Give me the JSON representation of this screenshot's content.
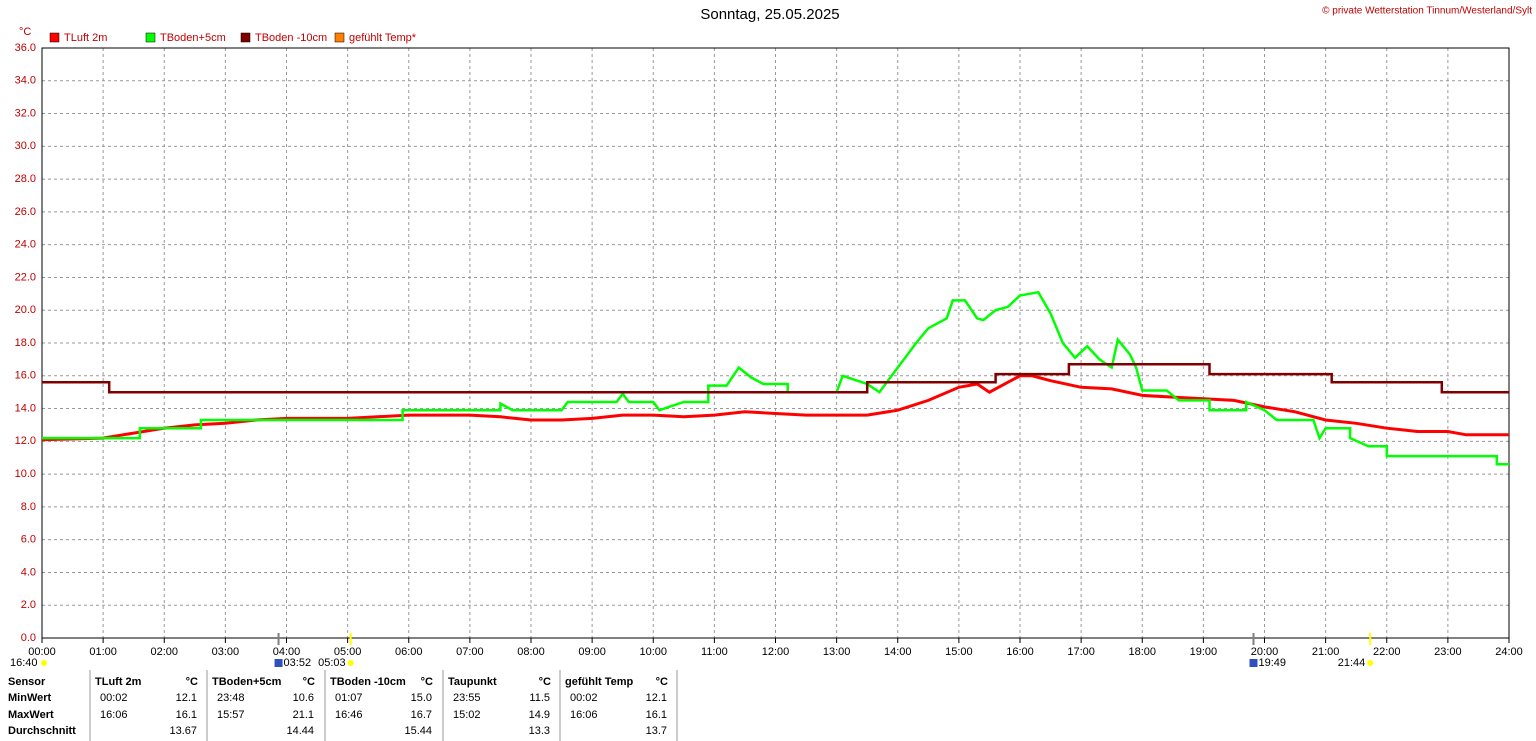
{
  "header": {
    "title": "Sonntag, 25.05.2025",
    "copyright": "© private Wetterstation Tinnum/Westerland/Sylt"
  },
  "chart_data": {
    "type": "line",
    "y_label": "°C",
    "xlim": [
      0,
      24
    ],
    "ylim": [
      0,
      36
    ],
    "grid": true,
    "xticks": [
      {
        "value": 0,
        "label": "00:00"
      },
      {
        "value": 1,
        "label": "01:00"
      },
      {
        "value": 2,
        "label": "02:00"
      },
      {
        "value": 3,
        "label": "03:00"
      },
      {
        "value": 4,
        "label": "04:00"
      },
      {
        "value": 5,
        "label": "05:00"
      },
      {
        "value": 6,
        "label": "06:00"
      },
      {
        "value": 7,
        "label": "07:00"
      },
      {
        "value": 8,
        "label": "08:00"
      },
      {
        "value": 9,
        "label": "09:00"
      },
      {
        "value": 10,
        "label": "10:00"
      },
      {
        "value": 11,
        "label": "11:00"
      },
      {
        "value": 12,
        "label": "12:00"
      },
      {
        "value": 13,
        "label": "13:00"
      },
      {
        "value": 14,
        "label": "14:00"
      },
      {
        "value": 15,
        "label": "15:00"
      },
      {
        "value": 16,
        "label": "16:00"
      },
      {
        "value": 17,
        "label": "17:00"
      },
      {
        "value": 18,
        "label": "18:00"
      },
      {
        "value": 19,
        "label": "19:00"
      },
      {
        "value": 20,
        "label": "20:00"
      },
      {
        "value": 21,
        "label": "21:00"
      },
      {
        "value": 22,
        "label": "22:00"
      },
      {
        "value": 23,
        "label": "23:00"
      },
      {
        "value": 24,
        "label": "24:00"
      }
    ],
    "yticks": [
      {
        "value": 0,
        "label": "0.0"
      },
      {
        "value": 2,
        "label": "2.0"
      },
      {
        "value": 4,
        "label": "4.0"
      },
      {
        "value": 6,
        "label": "6.0"
      },
      {
        "value": 8,
        "label": "8.0"
      },
      {
        "value": 10,
        "label": "10.0"
      },
      {
        "value": 12,
        "label": "12.0"
      },
      {
        "value": 14,
        "label": "14.0"
      },
      {
        "value": 16,
        "label": "16.0"
      },
      {
        "value": 18,
        "label": "18.0"
      },
      {
        "value": 20,
        "label": "20.0"
      },
      {
        "value": 22,
        "label": "22.0"
      },
      {
        "value": 24,
        "label": "24.0"
      },
      {
        "value": 26,
        "label": "26.0"
      },
      {
        "value": 28,
        "label": "28.0"
      },
      {
        "value": 30,
        "label": "30.0"
      },
      {
        "value": 32,
        "label": "32.0"
      },
      {
        "value": 34,
        "label": "34.0"
      },
      {
        "value": 36,
        "label": "36.0"
      }
    ],
    "series": [
      {
        "name": "TLuft 2m",
        "color": "#ff0000",
        "x": [
          0,
          1,
          1.5,
          2,
          2.5,
          3,
          3.5,
          4,
          5,
          6,
          7,
          7.5,
          8,
          8.5,
          9,
          9.5,
          10,
          10.5,
          11,
          11.5,
          12,
          12.5,
          13,
          13.5,
          14,
          14.5,
          15,
          15.3,
          15.5,
          15.8,
          16,
          16.2,
          16.5,
          17,
          17.5,
          18,
          18.5,
          19,
          19.5,
          20,
          20.5,
          21,
          21.5,
          22,
          22.5,
          23,
          23.3,
          24
        ],
        "values": [
          12.1,
          12.2,
          12.5,
          12.8,
          13.0,
          13.1,
          13.3,
          13.4,
          13.4,
          13.6,
          13.6,
          13.5,
          13.3,
          13.3,
          13.4,
          13.6,
          13.6,
          13.5,
          13.6,
          13.8,
          13.7,
          13.6,
          13.6,
          13.6,
          13.9,
          14.5,
          15.3,
          15.5,
          15.0,
          15.6,
          16.0,
          16.0,
          15.7,
          15.3,
          15.2,
          14.8,
          14.7,
          14.6,
          14.5,
          14.1,
          13.8,
          13.3,
          13.1,
          12.8,
          12.6,
          12.6,
          12.4,
          12.4
        ]
      },
      {
        "name": "TBoden+5cm",
        "color": "#00ff00",
        "x": [
          0,
          1.6,
          1.6,
          2.6,
          2.6,
          5.9,
          5.9,
          7.5,
          7.5,
          7.7,
          8.5,
          8.6,
          9.4,
          9.5,
          9.6,
          10.0,
          10.1,
          10.5,
          10.9,
          10.9,
          11.2,
          11.4,
          11.6,
          11.8,
          12.2,
          12.2,
          13.0,
          13.1,
          13.5,
          13.7,
          13.9,
          14.1,
          14.3,
          14.5,
          14.8,
          14.9,
          15.1,
          15.3,
          15.4,
          15.6,
          15.8,
          16.0,
          16.3,
          16.5,
          16.7,
          16.9,
          17.1,
          17.3,
          17.5,
          17.6,
          17.8,
          17.9,
          18.0,
          18.4,
          18.6,
          19.1,
          19.1,
          19.7,
          19.7,
          20.0,
          20.2,
          20.8,
          20.9,
          21.0,
          21.4,
          21.4,
          21.7,
          22.0,
          22.0,
          23.8,
          23.8,
          24
        ],
        "values": [
          12.2,
          12.2,
          12.8,
          12.8,
          13.3,
          13.3,
          13.9,
          13.9,
          14.3,
          13.9,
          13.9,
          14.4,
          14.4,
          14.9,
          14.4,
          14.4,
          13.9,
          14.4,
          14.4,
          15.4,
          15.4,
          16.5,
          15.9,
          15.5,
          15.5,
          15.0,
          15.0,
          16.0,
          15.5,
          15.0,
          16.0,
          17.0,
          18.0,
          18.9,
          19.5,
          20.6,
          20.6,
          19.5,
          19.4,
          20.0,
          20.2,
          20.9,
          21.1,
          19.8,
          18.0,
          17.1,
          17.8,
          17.0,
          16.5,
          18.2,
          17.3,
          16.5,
          15.1,
          15.1,
          14.5,
          14.5,
          13.9,
          13.9,
          14.4,
          13.9,
          13.3,
          13.3,
          12.2,
          12.8,
          12.8,
          12.2,
          11.7,
          11.7,
          11.1,
          11.1,
          10.6,
          10.6
        ]
      },
      {
        "name": "TBoden -10cm",
        "color": "#800000",
        "x": [
          0,
          1.1,
          1.1,
          13.5,
          13.5,
          15.6,
          15.6,
          16.8,
          16.8,
          19.1,
          19.1,
          21.1,
          21.1,
          22.9,
          22.9,
          24
        ],
        "values": [
          15.6,
          15.6,
          15.0,
          15.0,
          15.6,
          15.6,
          16.1,
          16.1,
          16.7,
          16.7,
          16.1,
          16.1,
          15.6,
          15.6,
          15.0,
          15.0
        ]
      },
      {
        "name": "gefühlt Temp*",
        "color": "#ff8000",
        "x": [],
        "values": []
      }
    ],
    "annotations": [
      {
        "label": "16:40",
        "color": "#ffff00"
      },
      {
        "label": "03:52",
        "x": 3.87,
        "color": "#3050c0"
      },
      {
        "label": "05:03",
        "x": 5.05,
        "color": "#ffff00"
      },
      {
        "label": "19:49",
        "x": 19.82,
        "color": "#3050c0"
      },
      {
        "label": "21:44",
        "x": 21.73,
        "color": "#ffff00"
      }
    ]
  },
  "table": {
    "sensor_label": "Sensor",
    "columns": [
      {
        "name": "TLuft 2m",
        "unit": "°C"
      },
      {
        "name": "TBoden+5cm",
        "unit": "°C"
      },
      {
        "name": "TBoden -10cm",
        "unit": "°C"
      },
      {
        "name": "Taupunkt",
        "unit": "°C"
      },
      {
        "name": "gefühlt Temp",
        "unit": "°C"
      }
    ],
    "rows": [
      {
        "label": "MinWert",
        "cells": [
          {
            "time": "00:02",
            "value": "12.1"
          },
          {
            "time": "23:48",
            "value": "10.6"
          },
          {
            "time": "01:07",
            "value": "15.0"
          },
          {
            "time": "23:55",
            "value": "11.5"
          },
          {
            "time": "00:02",
            "value": "12.1"
          }
        ]
      },
      {
        "label": "MaxWert",
        "cells": [
          {
            "time": "16:06",
            "value": "16.1"
          },
          {
            "time": "15:57",
            "value": "21.1"
          },
          {
            "time": "16:46",
            "value": "16.7"
          },
          {
            "time": "15:02",
            "value": "14.9"
          },
          {
            "time": "16:06",
            "value": "16.1"
          }
        ]
      },
      {
        "label": "Durchschnitt",
        "cells": [
          {
            "value": "13.67"
          },
          {
            "value": "14.44"
          },
          {
            "value": "15.44"
          },
          {
            "value": "13.3"
          },
          {
            "value": "13.7"
          }
        ]
      }
    ]
  }
}
